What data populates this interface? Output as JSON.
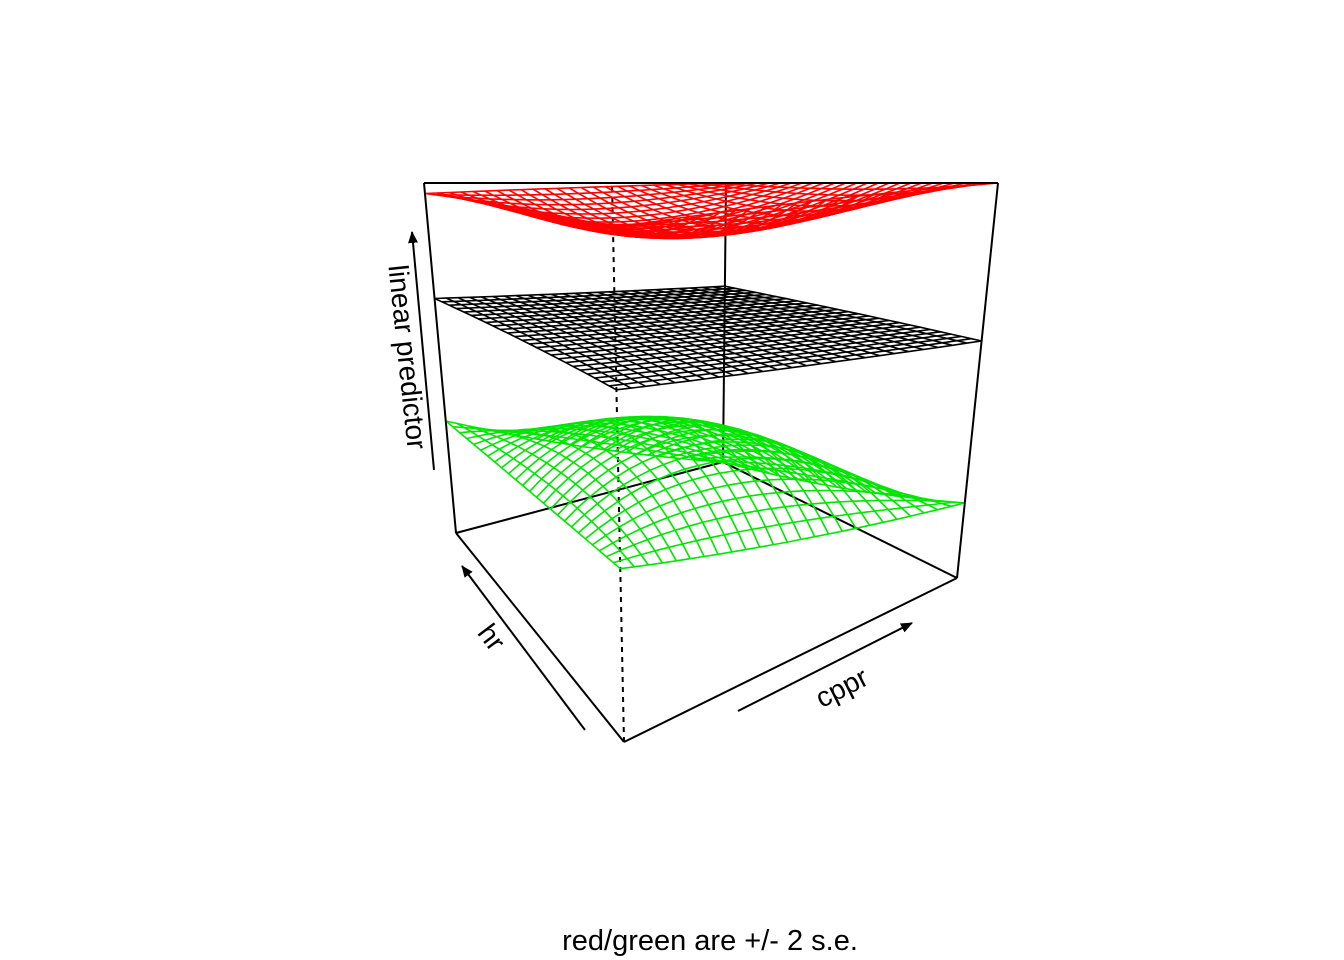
{
  "chart_data": {
    "type": "surface",
    "title": "",
    "caption": "red/green are +/- 2 s.e.",
    "xlabel": "cppr",
    "ylabel": "hr",
    "zlabel": "linear predictor",
    "xlim": [
      0,
      1
    ],
    "ylim": [
      0,
      1
    ],
    "zlim": [
      0,
      1
    ],
    "grid_size": 25,
    "series": [
      {
        "role": "fit",
        "color": "#000000",
        "corner_values": {
          "x0y0": 0.63,
          "x1y0": 0.6,
          "x0y1": 0.67,
          "x1y1": 0.63
        }
      },
      {
        "role": "upper",
        "color": "#ff0000",
        "corner_values": {
          "x0y0": 0.92,
          "x1y0": 1.0,
          "x0y1": 0.97,
          "x1y1": 1.0
        },
        "center_value": 0.87
      },
      {
        "role": "lower",
        "color": "#00e600",
        "corner_values": {
          "x0y0": 0.31,
          "x1y0": 0.19,
          "x0y1": 0.32,
          "x1y1": 0.0
        },
        "center_value": 0.4
      }
    ]
  }
}
